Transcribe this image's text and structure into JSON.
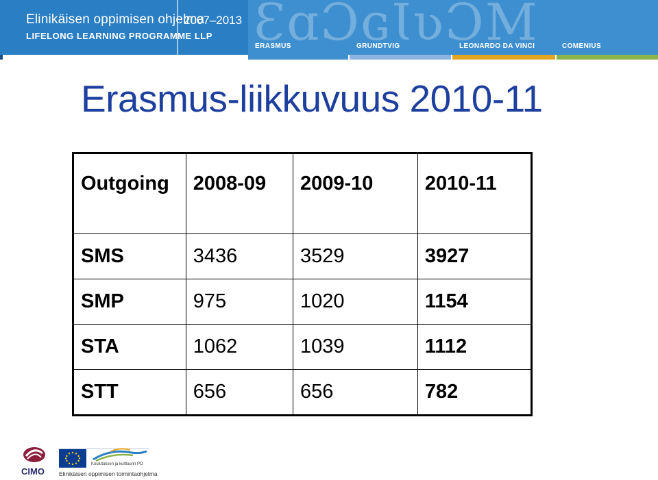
{
  "banner": {
    "line1": "Elinikäisen oppimisen ohjelma",
    "line2": "LIFELONG LEARNING PROGRAMME LLP",
    "years": "2007–2013",
    "programmes": [
      "ERASMUS",
      "GRUNDTVIG",
      "LEONARDO DA VINCI",
      "COMENIUS"
    ],
    "programme_colors": [
      "#3e8fd0",
      "#8bb3e0",
      "#e3a623",
      "#8ab34a"
    ]
  },
  "title": "Erasmus-liikkuvuus 2010-11",
  "table": {
    "headers": [
      "Outgoing",
      "2008-09",
      "2009-10",
      "2010-11"
    ],
    "rows": [
      {
        "label": "SMS",
        "values": [
          "3436",
          "3529",
          "3927"
        ]
      },
      {
        "label": "SMP",
        "values": [
          "975",
          "1020",
          "1154"
        ]
      },
      {
        "label": "STA",
        "values": [
          "1062",
          "1039",
          "1112"
        ]
      },
      {
        "label": "STT",
        "values": [
          "656",
          "656",
          "782"
        ]
      }
    ]
  },
  "footer": {
    "cimo": "CIMO",
    "dept": "Koulutuksen ja kulttuurin PO",
    "text": "Elinikäisen oppimisen toimintaohjelma"
  }
}
